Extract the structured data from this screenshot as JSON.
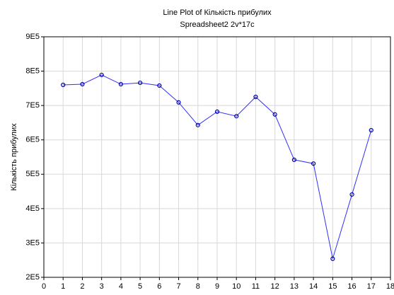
{
  "chart_data": {
    "type": "line",
    "title": "Line Plot of Кількість прибулих",
    "subtitle": "Spreadsheet2 2v*17c",
    "y_label": "Кількість прибулих",
    "x": [
      1,
      2,
      3,
      4,
      5,
      6,
      7,
      8,
      9,
      10,
      11,
      12,
      13,
      14,
      15,
      16,
      17
    ],
    "series": [
      {
        "name": "Кількість прибулих",
        "color": "#3030ff",
        "values": [
          760000,
          762000,
          789000,
          762000,
          766000,
          758000,
          709000,
          643000,
          682000,
          669000,
          725000,
          674000,
          542000,
          531000,
          254000,
          441000,
          628000
        ]
      }
    ],
    "xlim": [
      0,
      18
    ],
    "xticks": [
      0,
      1,
      2,
      3,
      4,
      5,
      6,
      7,
      8,
      9,
      10,
      11,
      12,
      13,
      14,
      15,
      16,
      17,
      18
    ],
    "ylim": [
      200000,
      900000
    ],
    "yticks": [
      {
        "value": 200000,
        "label": "2E5"
      },
      {
        "value": 300000,
        "label": "3E5"
      },
      {
        "value": 400000,
        "label": "4E5"
      },
      {
        "value": 500000,
        "label": "5E5"
      },
      {
        "value": 600000,
        "label": "6E5"
      },
      {
        "value": 700000,
        "label": "7E5"
      },
      {
        "value": 800000,
        "label": "8E5"
      },
      {
        "value": 900000,
        "label": "9E5"
      }
    ],
    "grid": true
  }
}
